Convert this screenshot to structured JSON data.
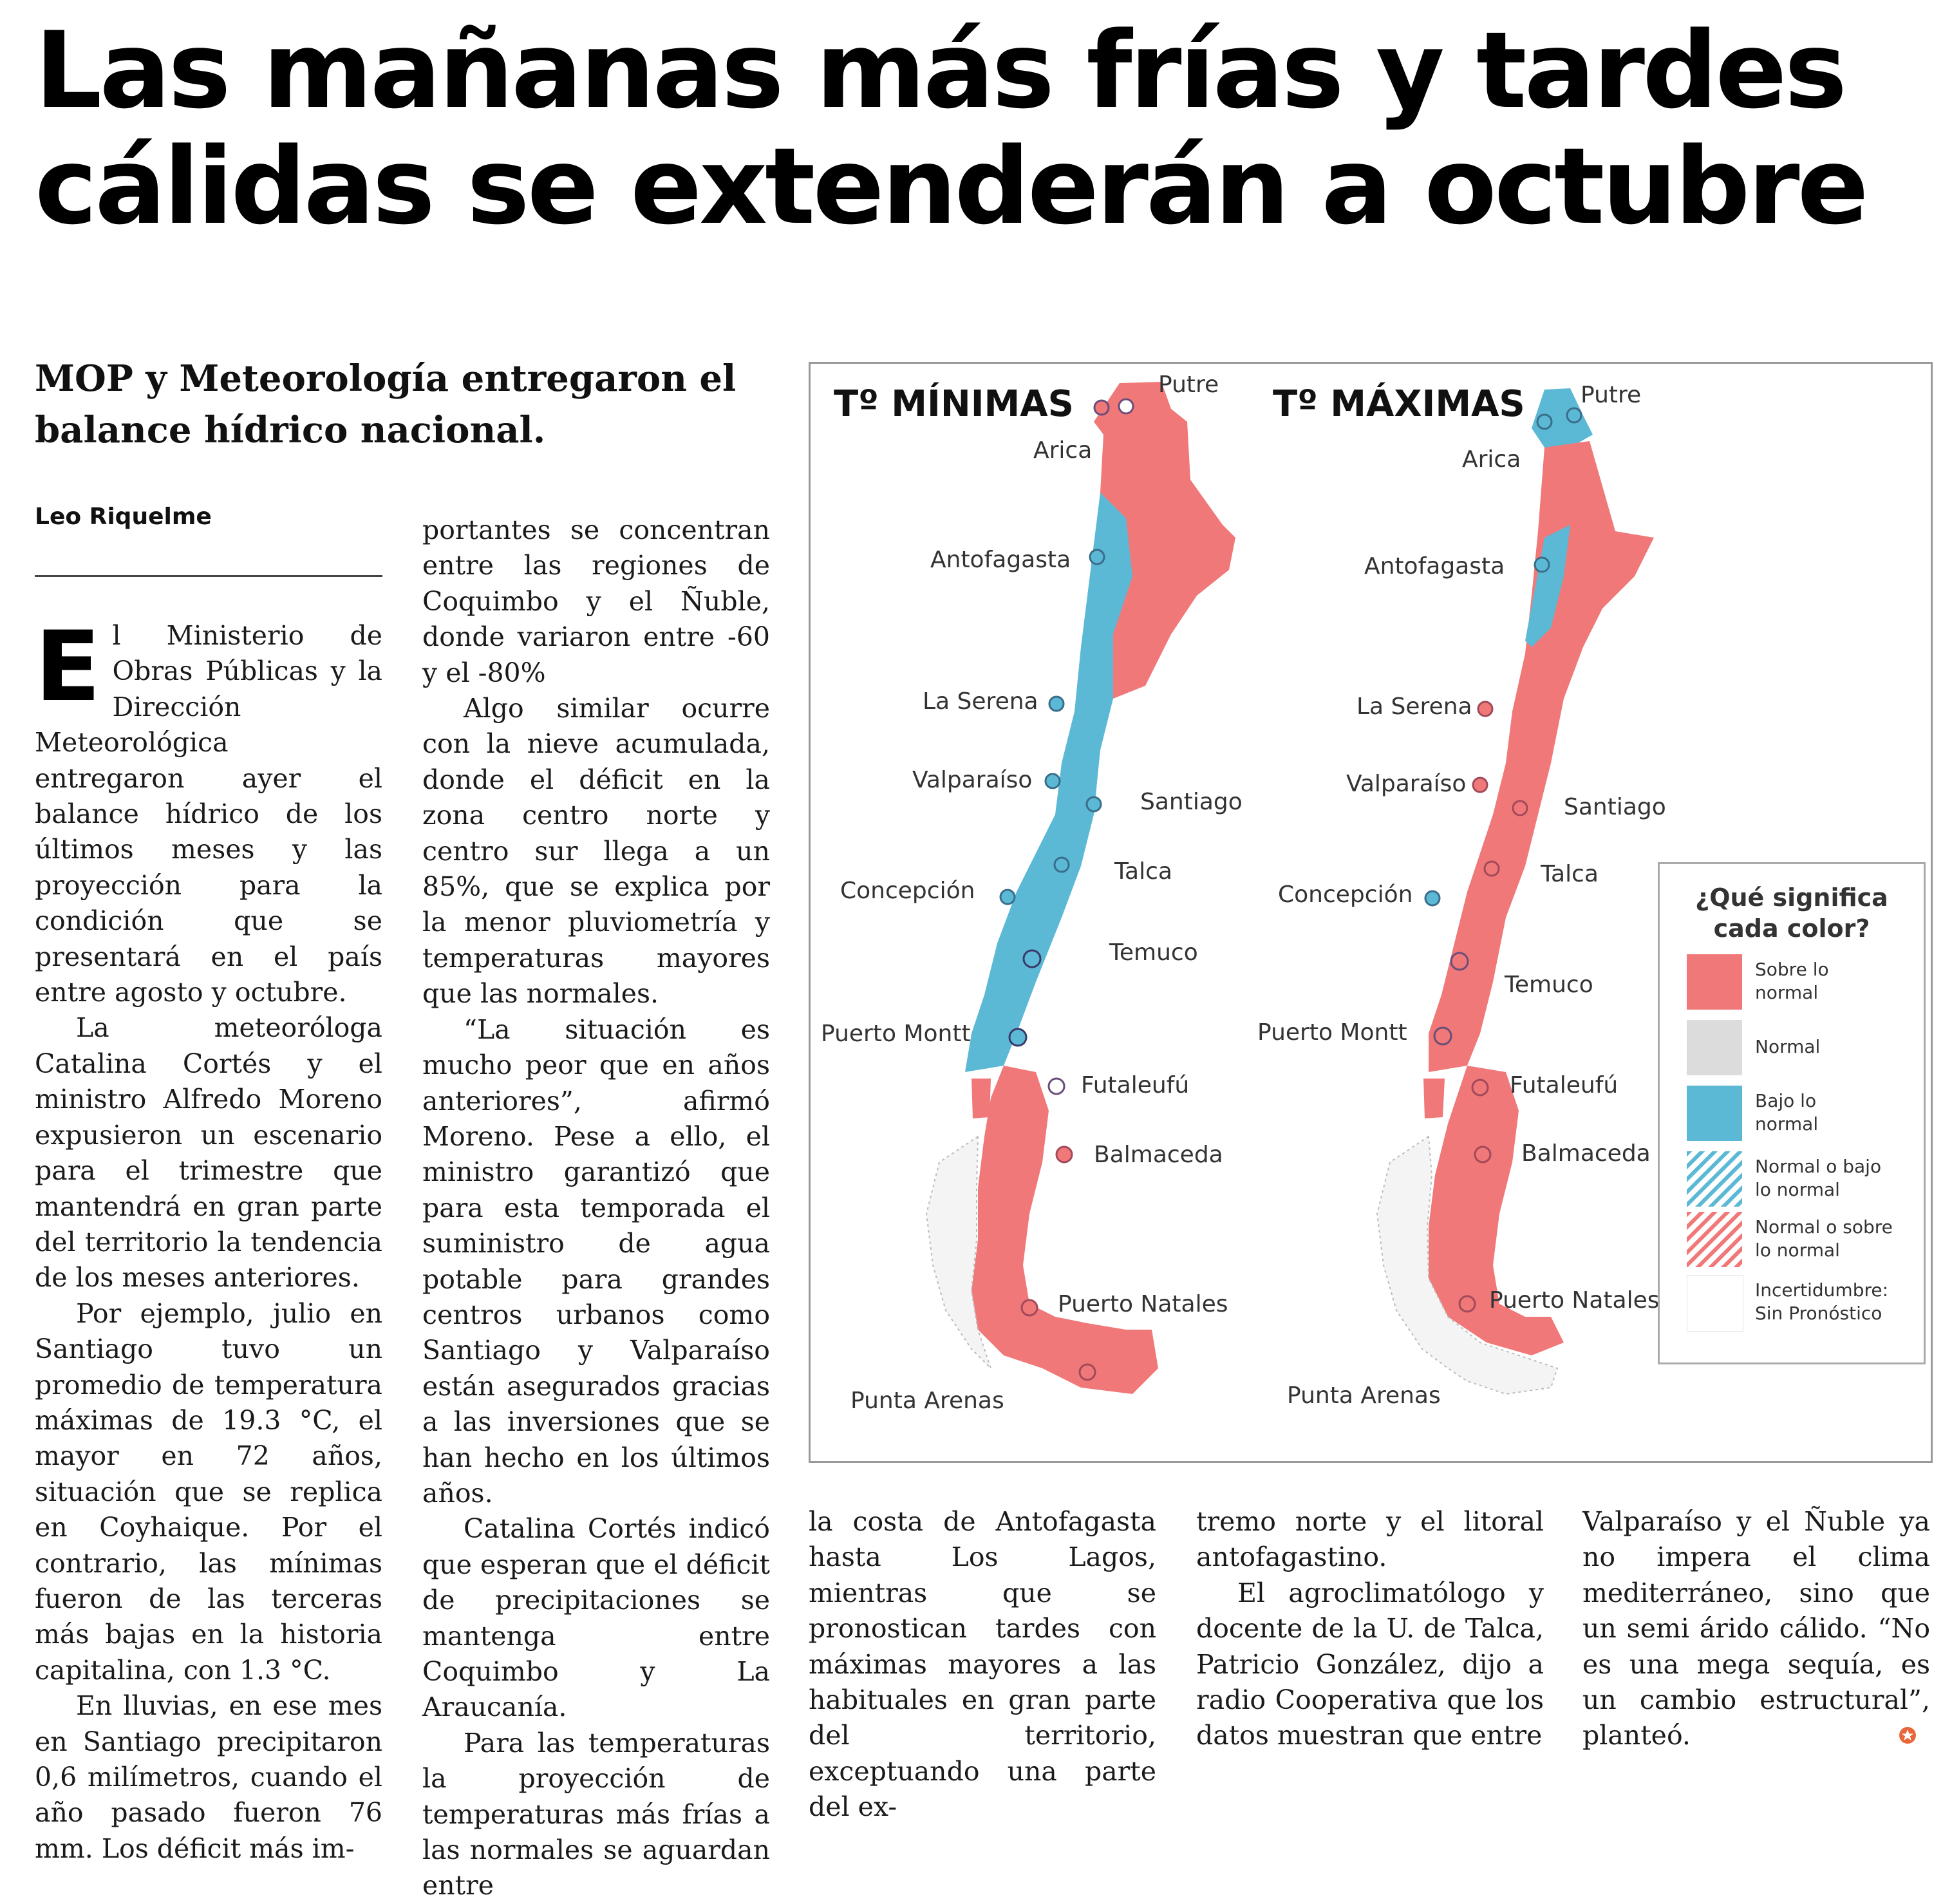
{
  "headline": {
    "line1": "Las mañanas más frías y tardes",
    "line2": "cálidas se extenderán a octubre"
  },
  "subhead": {
    "line1": "MOP y Meteorología entregaron el",
    "line2": "balance hídrico nacional."
  },
  "byline": "Leo Riquelme",
  "article": {
    "dropcap": "E",
    "col1": [
      "l Ministerio de Obras Públicas y la Dirección Meteorológica entregaron ayer el balance hídrico de los últimos meses y las proyección para la condición que se presentará en el país entre agosto y octubre.",
      "La meteoróloga Catalina Cortés y el ministro Alfredo Moreno expusieron un escenario para el trimestre que mantendrá en gran parte del territorio la tendencia de los meses anteriores.",
      "Por ejemplo, julio en Santiago tuvo un promedio de temperatura máximas de 19.3 °C, el mayor en 72 años, situación que se replica en Coyhaique. Por el contrario, las mínimas fueron de las terceras más bajas en la historia capitalina, con 1.3 °C.",
      "En lluvias, en ese mes en Santiago precipitaron 0,6 milímetros, cuando el año pasado fueron 76 mm. Los déficit más im-"
    ],
    "col2": [
      "portantes se concentran entre las regiones de Coquimbo y el Ñuble, donde variaron entre -60 y el -80%",
      "Algo similar ocurre con la nieve acumulada, donde el déficit en la zona centro norte y centro sur llega a un 85%, que se explica por la menor pluviometría y temperaturas mayores que las normales.",
      "“La situación es mucho peor que en años anteriores”, afirmó Moreno. Pese a ello, el ministro garantizó que para esta temporada el suministro de agua potable para grandes centros urbanos como Santiago y Valparaíso están asegurados gracias a las inversiones que se han hecho en los últimos años.",
      "Catalina Cortés indicó que esperan que el déficit de precipitaciones se mantenga entre Coquimbo y La Araucanía.",
      "Para las temperaturas la proyección de temperaturas más frías a las normales se aguardan entre"
    ],
    "col3": [
      "la costa de Antofagasta hasta Los Lagos, mientras que se pronostican tardes con máximas mayores a las habituales en gran parte del territorio, exceptuando una parte del ex-"
    ],
    "col4": [
      "tremo norte y el litoral antofagastino.",
      "El agroclimatólogo y docente de la U. de Talca, Patricio González, dijo a radio Cooperativa que los datos muestran que entre"
    ],
    "col5": [
      "Valparaíso y el Ñuble ya no impera el clima mediterráneo, sino que un semi árido cálido. “No es una mega sequía, es un cambio estructural”, planteó."
    ]
  },
  "map": {
    "title_min": "Tº MÍNIMAS",
    "title_max": "Tº MÁXIMAS",
    "cities_min": [
      "Putre",
      "Arica",
      "Antofagasta",
      "La Serena",
      "Valparaíso",
      "Santiago",
      "Talca",
      "Concepción",
      "Temuco",
      "Puerto Montt",
      "Futaleufú",
      "Balmaceda",
      "Puerto Natales",
      "Punta Arenas"
    ],
    "cities_max": [
      "Putre",
      "Arica",
      "Antofagasta",
      "La Serena",
      "Valparaíso",
      "Santiago",
      "Talca",
      "Concepción",
      "Temuco",
      "Puerto Montt",
      "Futaleufú",
      "Balmaceda",
      "Puerto Natales",
      "Punta Arenas"
    ],
    "colors": {
      "above": "#f07878",
      "normal": "#dcdcdc",
      "below": "#5bb9d6",
      "uncertain": "#ffffff"
    },
    "legend": {
      "title_line1": "¿Qué significa",
      "title_line2": "cada color?",
      "items": [
        {
          "line1": "Sobre lo",
          "line2": "normal"
        },
        {
          "line1": "Normal",
          "line2": ""
        },
        {
          "line1": "Bajo lo",
          "line2": "normal"
        },
        {
          "line1": "Normal o bajo",
          "line2": "lo normal"
        },
        {
          "line1": "Normal o sobre",
          "line2": "lo normal"
        },
        {
          "line1": "Incertidumbre:",
          "line2": "Sin Pronóstico"
        }
      ]
    }
  }
}
